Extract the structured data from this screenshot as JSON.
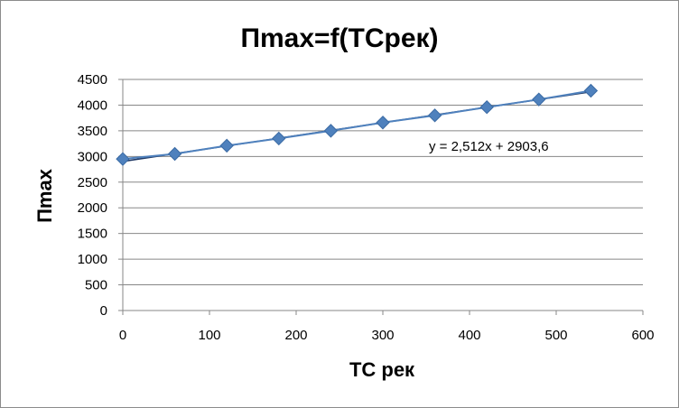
{
  "chart_data": {
    "type": "scatter",
    "title": "Пmax=f(TCрек)",
    "xlabel": "TC рек",
    "ylabel": "Пmax",
    "xlim": [
      0,
      600
    ],
    "ylim": [
      0,
      4500
    ],
    "xticks": [
      0,
      100,
      200,
      300,
      400,
      500,
      600
    ],
    "yticks": [
      0,
      500,
      1000,
      1500,
      2000,
      2500,
      3000,
      3500,
      4000,
      4500
    ],
    "grid": {
      "horizontal": true,
      "vertical": false
    },
    "legend": "none",
    "series": [
      {
        "marker": "diamond",
        "color": "#4f81bd",
        "x": [
          0,
          60,
          120,
          180,
          240,
          300,
          360,
          420,
          480,
          540
        ],
        "y": [
          2950,
          3050,
          3210,
          3350,
          3500,
          3660,
          3800,
          3960,
          4110,
          4280
        ]
      }
    ],
    "trendline": {
      "type": "linear",
      "slope": 2.512,
      "intercept": 2903.6,
      "x_range": [
        0,
        540
      ],
      "color": "#1f3864",
      "equation_label": "y = 2,512x + 2903,6"
    }
  }
}
